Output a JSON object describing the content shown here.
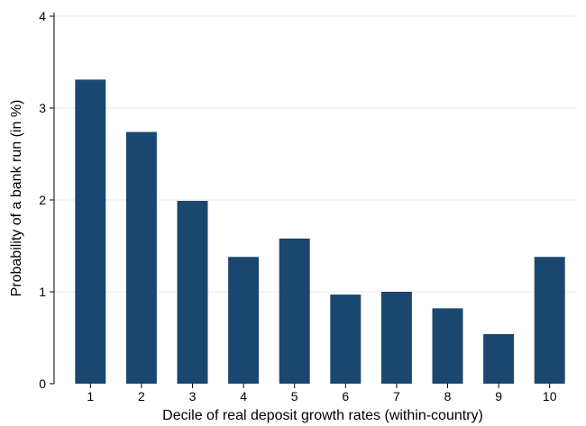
{
  "chart_data": {
    "type": "bar",
    "title": "",
    "xlabel": "Decile of real deposit growth rates (within-country)",
    "ylabel": "Probability of a bank run (in %)",
    "categories": [
      "1",
      "2",
      "3",
      "4",
      "5",
      "6",
      "7",
      "8",
      "9",
      "10"
    ],
    "values": [
      3.31,
      2.74,
      1.99,
      1.38,
      1.58,
      0.97,
      1.0,
      0.82,
      0.54,
      1.38
    ],
    "ylim": [
      0,
      4
    ],
    "yticks": [
      "0",
      "1",
      "2",
      "3",
      "4"
    ],
    "grid": true,
    "legend": "none",
    "bar_color": "#1a476f"
  }
}
